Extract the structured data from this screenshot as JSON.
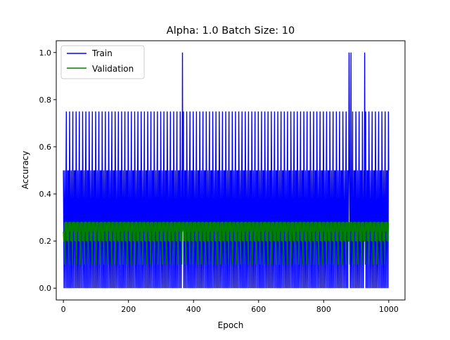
{
  "chart_data": {
    "type": "line",
    "title": "Alpha: 1.0 Batch Size: 10",
    "xlabel": "Epoch",
    "ylabel": "Accuracy",
    "xlim": [
      -22,
      1050
    ],
    "ylim": [
      -0.05,
      1.05
    ],
    "xticks": [
      0,
      200,
      400,
      600,
      800,
      1000
    ],
    "yticks": [
      0.0,
      0.2,
      0.4,
      0.6,
      0.8,
      1.0
    ],
    "xtick_labels": [
      "0",
      "200",
      "400",
      "600",
      "800",
      "1000"
    ],
    "ytick_labels": [
      "0.0",
      "0.2",
      "0.4",
      "0.6",
      "0.8",
      "1.0"
    ],
    "grid": false,
    "legend_position": "top-left",
    "series": [
      {
        "name": "Train",
        "color": "#0000ff",
        "epochs": [
          0,
          1000
        ],
        "values_pattern": [
          0.5,
          0.25,
          0.0,
          0.75,
          0.25,
          0.5,
          0.0,
          0.25,
          0.5,
          0.25,
          0.0,
          0.5,
          0.25,
          0.75,
          0.0,
          0.25,
          0.5,
          0.25,
          0.0,
          0.5
        ],
        "peaks": [
          {
            "epoch": 366,
            "value": 1.0
          },
          {
            "epoch": 878,
            "value": 1.0
          },
          {
            "epoch": 884,
            "value": 1.0
          },
          {
            "epoch": 926,
            "value": 1.0
          }
        ],
        "last_value": 0.5
      },
      {
        "name": "Validation",
        "color": "#008000",
        "epochs": [
          0,
          1000
        ],
        "values_pattern": [
          0.28,
          0.2,
          0.28,
          0.24,
          0.28,
          0.2,
          0.28,
          0.1,
          0.28,
          0.24,
          0.2,
          0.28
        ],
        "last_value": 0.28
      }
    ]
  }
}
